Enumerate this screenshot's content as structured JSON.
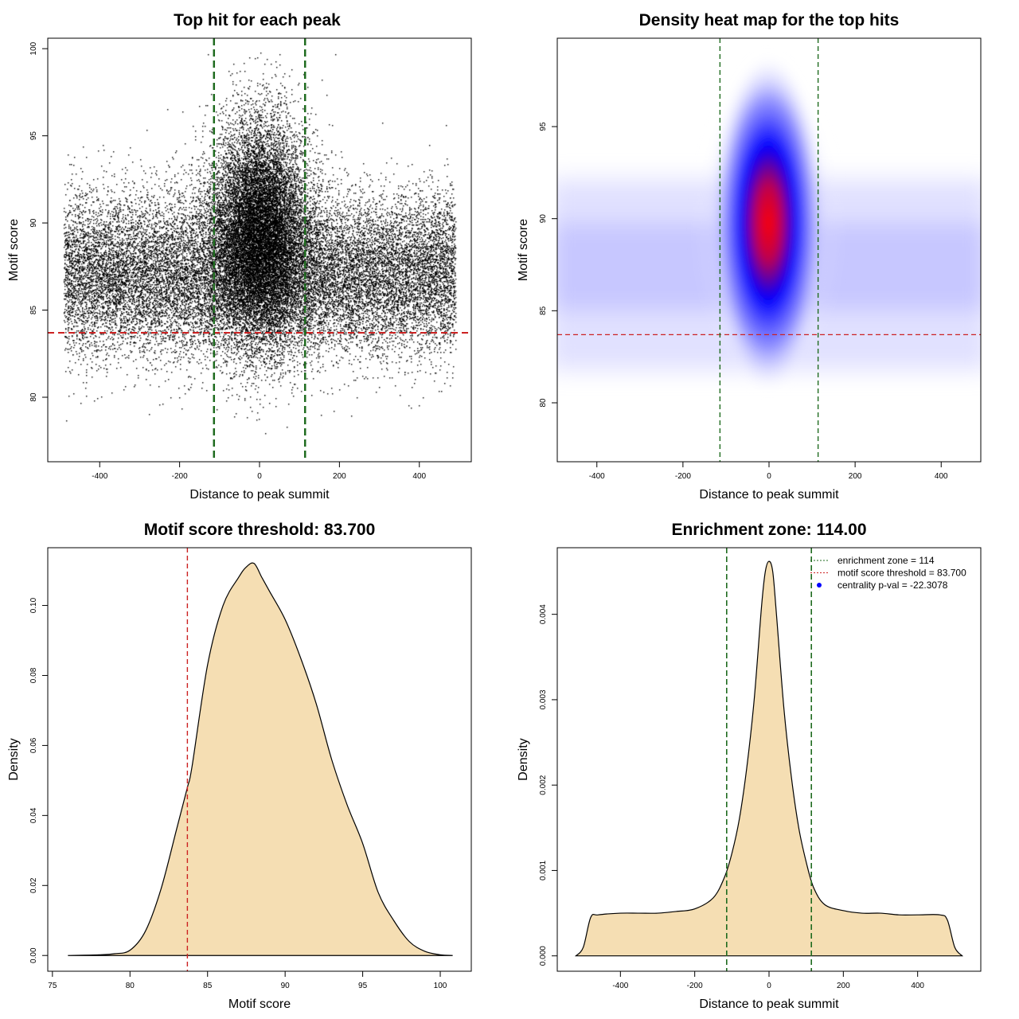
{
  "colors": {
    "threshold_red": "#cc2222",
    "zone_green": "#1f6b1f",
    "density_fill": "#f5deb3",
    "heat_low": "#ffffff",
    "heat_mid": "#0000ff",
    "heat_high": "#ff0000",
    "centrality_point": "#0000ff"
  },
  "chart_data": [
    {
      "type": "scatter",
      "title": "Top hit for each peak",
      "xlabel": "Distance to peak summit",
      "ylabel": "Motif score",
      "xlim": [
        -530,
        530
      ],
      "ylim": [
        76.3,
        100.6
      ],
      "xticks": [
        -400,
        -200,
        0,
        200,
        400
      ],
      "yticks": [
        80,
        85,
        90,
        95,
        100
      ],
      "xtick_labels": [
        "-400",
        "-200",
        "0",
        "200",
        "400"
      ],
      "ytick_labels": [
        "80",
        "85",
        "90",
        "95",
        "100"
      ],
      "distribution": {
        "x_range": [
          -490,
          490
        ],
        "central_sd_x": 60,
        "central_mean_y": 89.5,
        "central_sd_y": 3.2,
        "background_mean_y": 87,
        "background_sd_y": 2.3,
        "central_fraction": 0.42,
        "y_min": 77,
        "y_max": 99.8,
        "n_points": 34000
      },
      "hline": 83.7,
      "vlines": [
        -114,
        114
      ]
    },
    {
      "type": "heatmap",
      "title": "Density heat map for the top hits",
      "xlabel": "Distance to peak summit",
      "ylabel": "Motif score",
      "xlim": [
        -492,
        492
      ],
      "ylim": [
        76.8,
        99.8
      ],
      "xticks": [
        -400,
        -200,
        0,
        200,
        400
      ],
      "yticks": [
        80,
        85,
        90,
        95
      ],
      "xtick_labels": [
        "-400",
        "-200",
        "0",
        "200",
        "400"
      ],
      "ytick_labels": [
        "80",
        "85",
        "90",
        "95"
      ],
      "peak": {
        "x": 0,
        "y": 90
      },
      "hline": 83.7,
      "vlines": [
        -114,
        114
      ]
    },
    {
      "type": "area",
      "title": "Motif score threshold: 83.700",
      "xlabel": "Motif score",
      "ylabel": "Density",
      "xlim": [
        74.7,
        102
      ],
      "ylim": [
        -0.0045,
        0.1165
      ],
      "xticks": [
        75,
        80,
        85,
        90,
        95,
        100
      ],
      "yticks": [
        0,
        0.02,
        0.04,
        0.06,
        0.08,
        0.1
      ],
      "xtick_labels": [
        "75",
        "80",
        "85",
        "90",
        "95",
        "100"
      ],
      "ytick_labels": [
        "0.00",
        "0.02",
        "0.04",
        "0.06",
        "0.08",
        "0.10"
      ],
      "x": [
        76,
        78,
        79,
        80,
        81,
        82,
        83,
        83.7,
        84,
        85,
        86,
        87,
        87.5,
        88,
        88.5,
        89,
        90,
        91,
        92,
        93,
        94,
        95,
        96,
        97,
        98,
        99,
        100,
        100.8
      ],
      "y": [
        0,
        0.0002,
        0.0005,
        0.0015,
        0.007,
        0.019,
        0.036,
        0.048,
        0.054,
        0.083,
        0.1,
        0.108,
        0.111,
        0.112,
        0.108,
        0.104,
        0.096,
        0.085,
        0.072,
        0.056,
        0.043,
        0.032,
        0.018,
        0.01,
        0.004,
        0.0012,
        0.0002,
        0
      ],
      "vline": 83.7
    },
    {
      "type": "area",
      "title": "Enrichment zone: 114.00",
      "xlabel": "Distance to peak summit",
      "ylabel": "Density",
      "xlim": [
        -570,
        570
      ],
      "ylim": [
        -0.00018,
        0.00478
      ],
      "xticks": [
        -400,
        -200,
        0,
        200,
        400
      ],
      "yticks": [
        0,
        0.001,
        0.002,
        0.003,
        0.004
      ],
      "xtick_labels": [
        "-400",
        "-200",
        "0",
        "200",
        "400"
      ],
      "ytick_labels": [
        "0.000",
        "0.001",
        "0.002",
        "0.003",
        "0.004"
      ],
      "x": [
        -520,
        -500,
        -480,
        -460,
        -400,
        -350,
        -300,
        -250,
        -200,
        -150,
        -120,
        -100,
        -80,
        -60,
        -40,
        -20,
        -10,
        0,
        10,
        20,
        40,
        60,
        80,
        100,
        120,
        150,
        200,
        250,
        300,
        350,
        400,
        460,
        480,
        500,
        520
      ],
      "y": [
        0,
        0.0001,
        0.00045,
        0.00048,
        0.0005,
        0.0005,
        0.0005,
        0.00052,
        0.00055,
        0.00068,
        0.00092,
        0.0012,
        0.0016,
        0.0022,
        0.003,
        0.0041,
        0.0045,
        0.00462,
        0.0045,
        0.004,
        0.0029,
        0.0021,
        0.0015,
        0.0011,
        0.0008,
        0.0006,
        0.00053,
        0.0005,
        0.0005,
        0.00048,
        0.00048,
        0.00048,
        0.00042,
        0.0001,
        0
      ],
      "vlines": [
        -114,
        114
      ],
      "legend": [
        "enrichment zone = 114",
        "motif score threshold = 83.700",
        "centrality p-val = -22.3078"
      ]
    }
  ]
}
